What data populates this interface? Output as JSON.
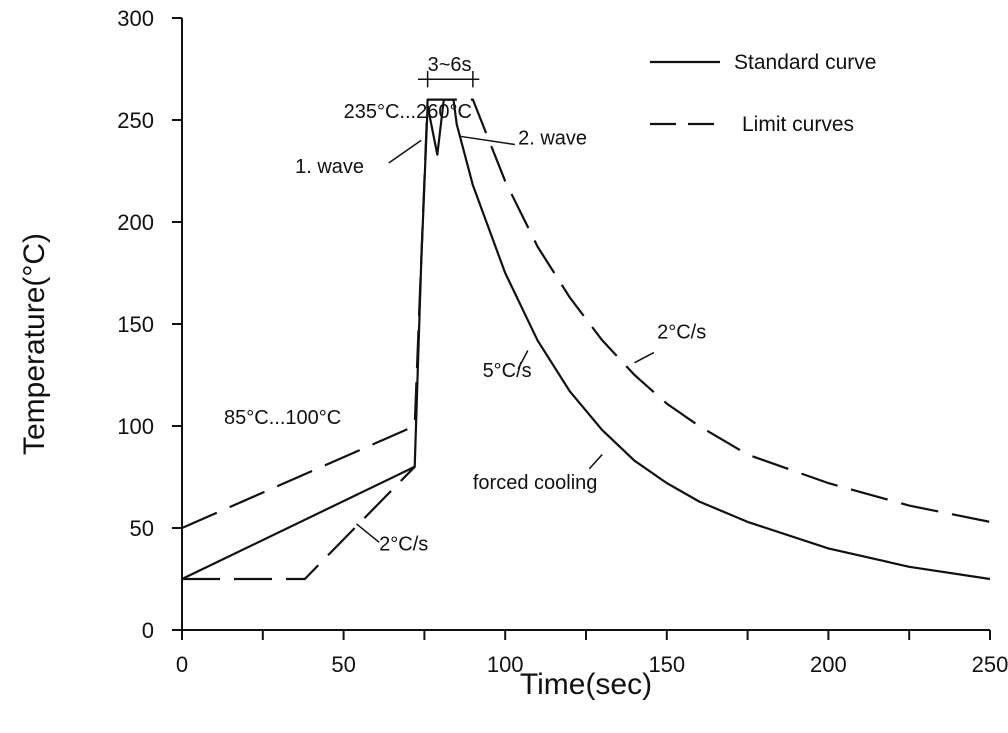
{
  "chart_data": {
    "type": "line",
    "title": "",
    "xlabel": "Time(sec)",
    "ylabel": "Temperature(°C)",
    "xlim": [
      0,
      250
    ],
    "ylim": [
      0,
      300
    ],
    "x_ticks": [
      0,
      50,
      100,
      150,
      200,
      250
    ],
    "x_minor_step": 25,
    "y_ticks": [
      0,
      50,
      100,
      150,
      200,
      250,
      300
    ],
    "grid": false,
    "legend_position": "top-right",
    "series": [
      {
        "name": "Standard curve",
        "style": "solid",
        "x": [
          0,
          72,
          74,
          76,
          79,
          81,
          82,
          84,
          85,
          90,
          100,
          110,
          120,
          130,
          140,
          150,
          160,
          175,
          200,
          225,
          250
        ],
        "y": [
          25,
          80,
          180,
          257,
          233,
          260,
          260,
          260,
          248,
          218,
          175,
          142,
          117,
          98,
          83,
          72,
          63,
          53,
          40,
          31,
          25
        ]
      },
      {
        "name": "Limit curves",
        "style": "dashed",
        "x": [
          0,
          72,
          76,
          90,
          95,
          100,
          110,
          120,
          130,
          140,
          150,
          160,
          175,
          200,
          225,
          250
        ],
        "y": [
          50,
          100,
          260,
          260,
          240,
          220,
          188,
          163,
          142,
          125,
          111,
          100,
          86,
          72,
          61,
          53
        ]
      },
      {
        "name": "Limit curves",
        "style": "dashed",
        "x": [
          0,
          38,
          72
        ],
        "y": [
          25,
          25,
          80
        ]
      }
    ],
    "legend": [
      "Standard curve",
      "Limit curves"
    ],
    "annotations": [
      {
        "id": "range-high",
        "text": "235°C...260°C",
        "x": 50,
        "y": 251
      },
      {
        "id": "wave1",
        "text": "1. wave",
        "x": 35,
        "y": 224
      },
      {
        "id": "wave2",
        "text": "2. wave",
        "x": 104,
        "y": 238
      },
      {
        "id": "dwell",
        "text": "3~6s",
        "x": 76,
        "y": 274
      },
      {
        "id": "range-low",
        "text": "85°C...100°C",
        "x": 13,
        "y": 101
      },
      {
        "id": "rate-heat",
        "text": "2°C/s",
        "x": 61,
        "y": 39
      },
      {
        "id": "rate-cool-std",
        "text": "5°C/s",
        "x": 93,
        "y": 124
      },
      {
        "id": "rate-cool-lim",
        "text": "2°C/s",
        "x": 147,
        "y": 143
      },
      {
        "id": "forced",
        "text": "forced cooling",
        "x": 90,
        "y": 69
      }
    ]
  }
}
